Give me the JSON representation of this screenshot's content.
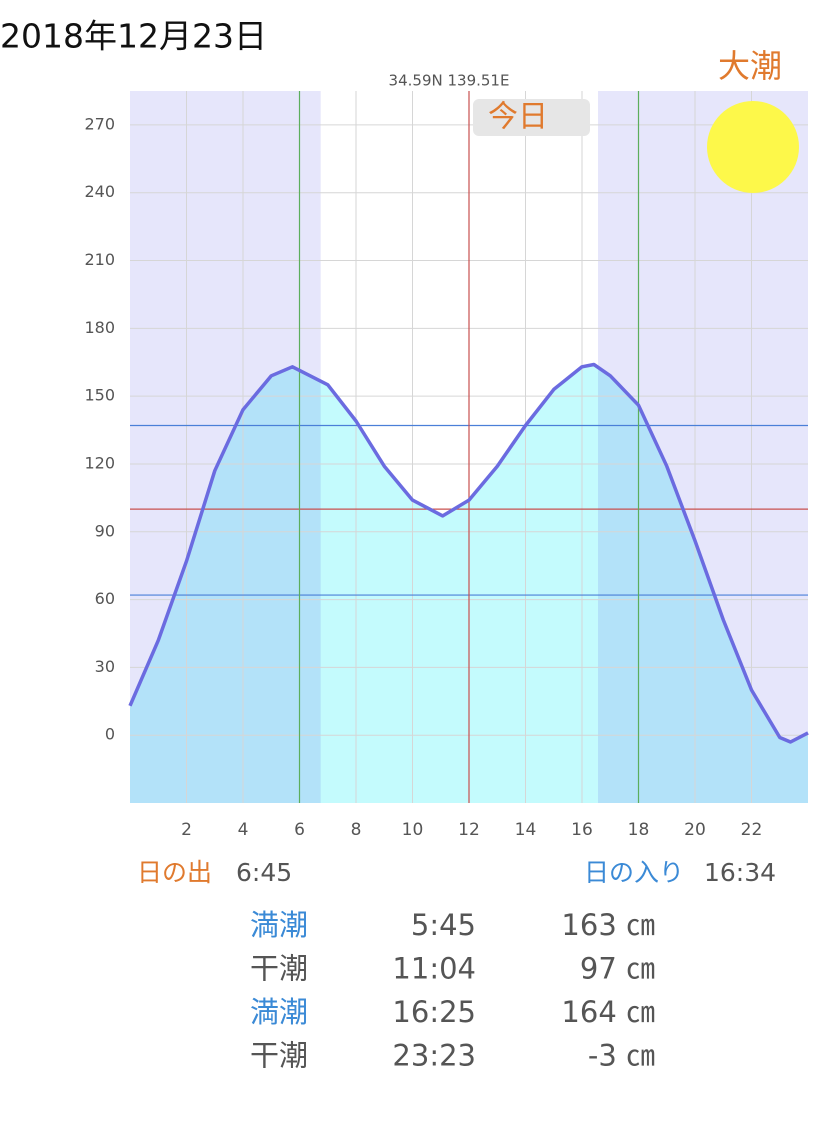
{
  "date": "2018年12月23日",
  "tide_type": "大潮",
  "today_label": "今日",
  "sunrise": {
    "label": "日の出",
    "time": "6:45"
  },
  "sunset": {
    "label": "日の入り",
    "time": "16:34"
  },
  "tide_table": [
    {
      "type": "満潮",
      "time": "5:45",
      "height": "163 ㎝",
      "color": "#3b8ad6"
    },
    {
      "type": "干潮",
      "time": "11:04",
      "height": "97 ㎝",
      "color": "#555555"
    },
    {
      "type": "満潮",
      "time": "16:25",
      "height": "164 ㎝",
      "color": "#3b8ad6"
    },
    {
      "type": "干潮",
      "time": "23:23",
      "height": "-3 ㎝",
      "color": "#555555"
    }
  ],
  "chart_data": {
    "type": "line",
    "subtitle": "34.59N 139.51E",
    "x": [
      0,
      1,
      2,
      3,
      4,
      5,
      5.75,
      7,
      8,
      9,
      10,
      11.07,
      12,
      13,
      14,
      15,
      16,
      16.42,
      17,
      18,
      19,
      20,
      21,
      22,
      23,
      23.38,
      24
    ],
    "values": [
      13,
      42,
      77,
      117,
      144,
      159,
      163,
      155,
      139,
      119,
      104,
      97,
      104,
      119,
      137,
      153,
      163,
      164,
      159,
      146,
      119,
      86,
      51,
      20,
      -1,
      -3,
      1
    ],
    "color": "#6b6be0",
    "fill": "#c4fbfd",
    "night_color": "rgba(90,90,230,0.15)",
    "xlim": [
      0,
      24
    ],
    "xticks": [
      2,
      4,
      6,
      8,
      10,
      12,
      14,
      16,
      18,
      20,
      22
    ],
    "ylim": [
      -30,
      285
    ],
    "yticks": [
      0,
      30,
      60,
      90,
      120,
      150,
      180,
      210,
      240,
      270
    ],
    "grid": true,
    "hlines": [
      {
        "value": 137,
        "color": "#4a7fd8"
      },
      {
        "value": 100,
        "color": "#c8504f"
      },
      {
        "value": 62,
        "color": "#4a7fd8"
      }
    ],
    "vlines": [
      {
        "value": 6,
        "color": "#5cae5c"
      },
      {
        "value": 12,
        "color": "#c8504f"
      },
      {
        "value": 18,
        "color": "#5cae5c"
      }
    ]
  }
}
